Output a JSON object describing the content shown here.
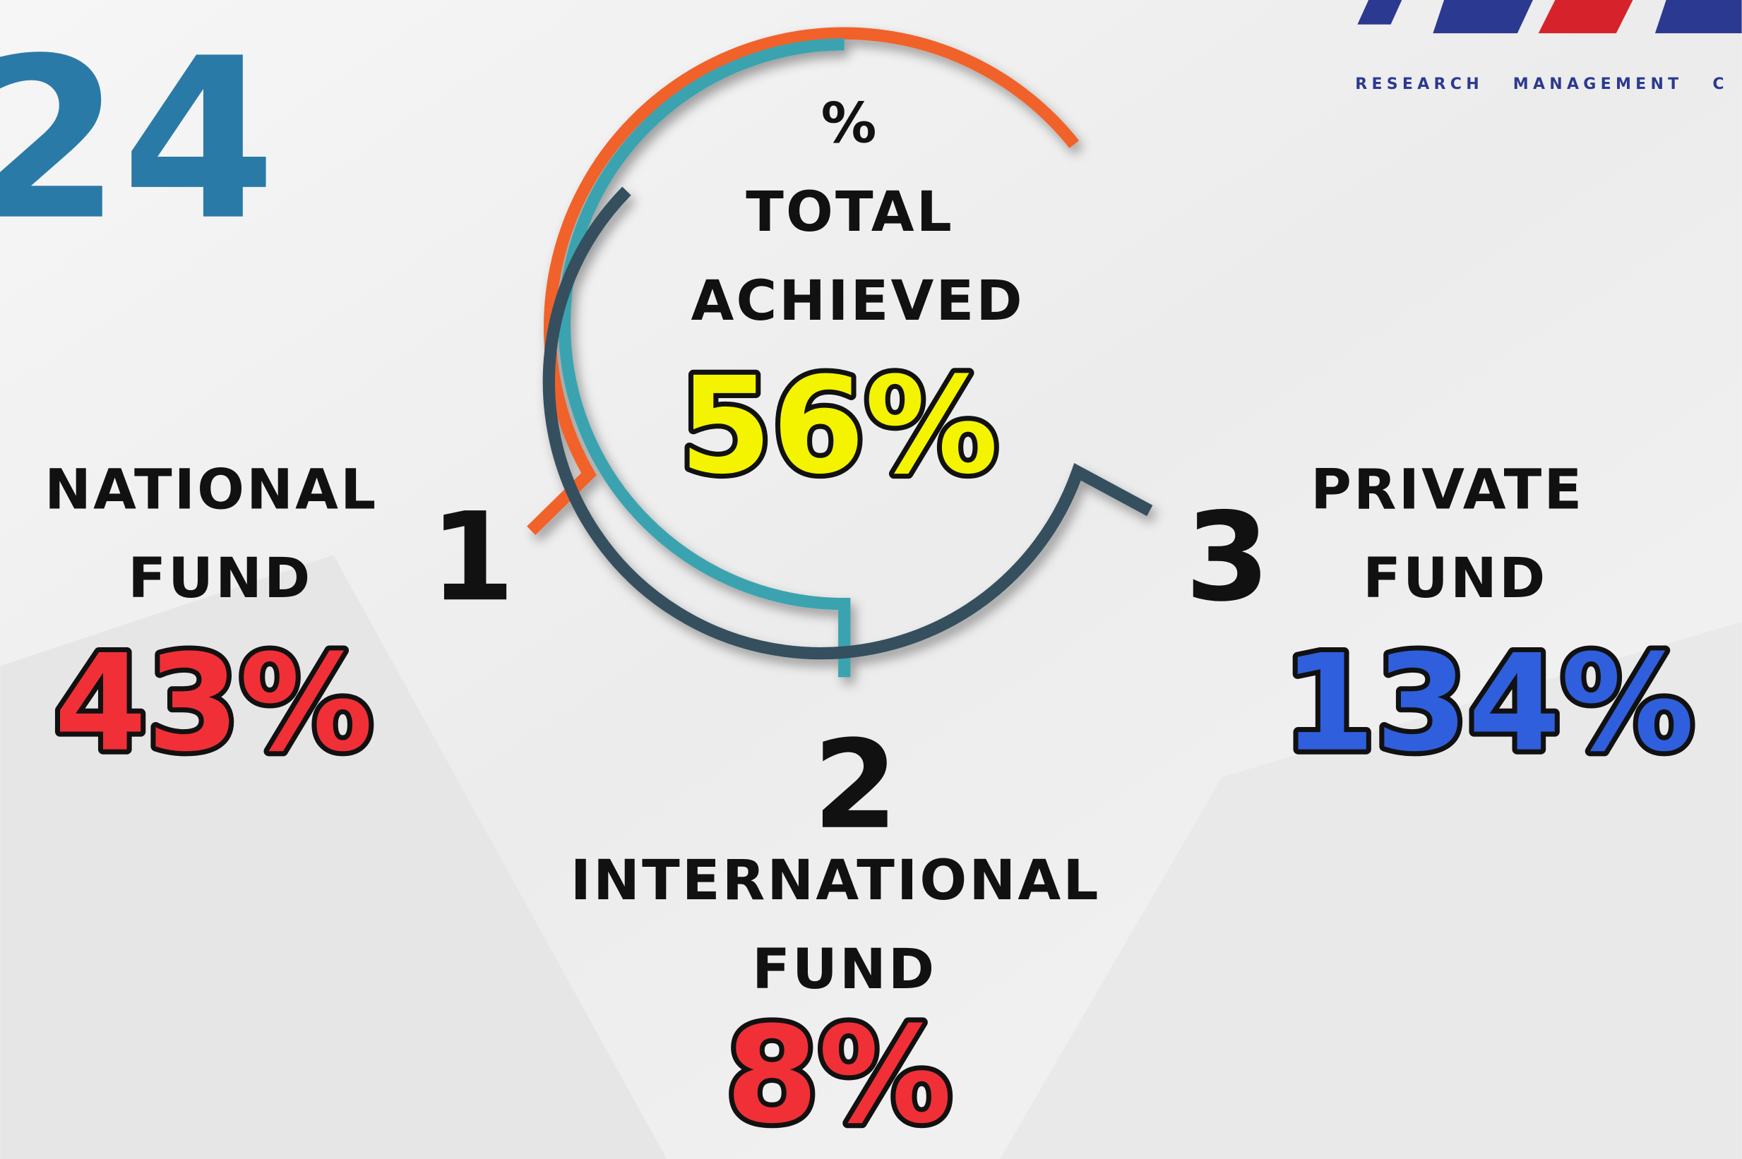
{
  "year": "24",
  "logo": {
    "tagline": "RESEARCH   MANAGEMENT   C"
  },
  "total": {
    "symbol": "%",
    "label": [
      "TOTAL",
      "ACHIEVED"
    ],
    "value": "56%"
  },
  "funds": [
    {
      "number": "1",
      "label": [
        "NATIONAL",
        "FUND"
      ],
      "value": "43%"
    },
    {
      "number": "2",
      "label": [
        "INTERNATIONAL",
        "FUND"
      ],
      "value": "8%"
    },
    {
      "number": "3",
      "label": [
        "PRIVATE",
        "FUND"
      ],
      "value": "134%"
    }
  ]
}
